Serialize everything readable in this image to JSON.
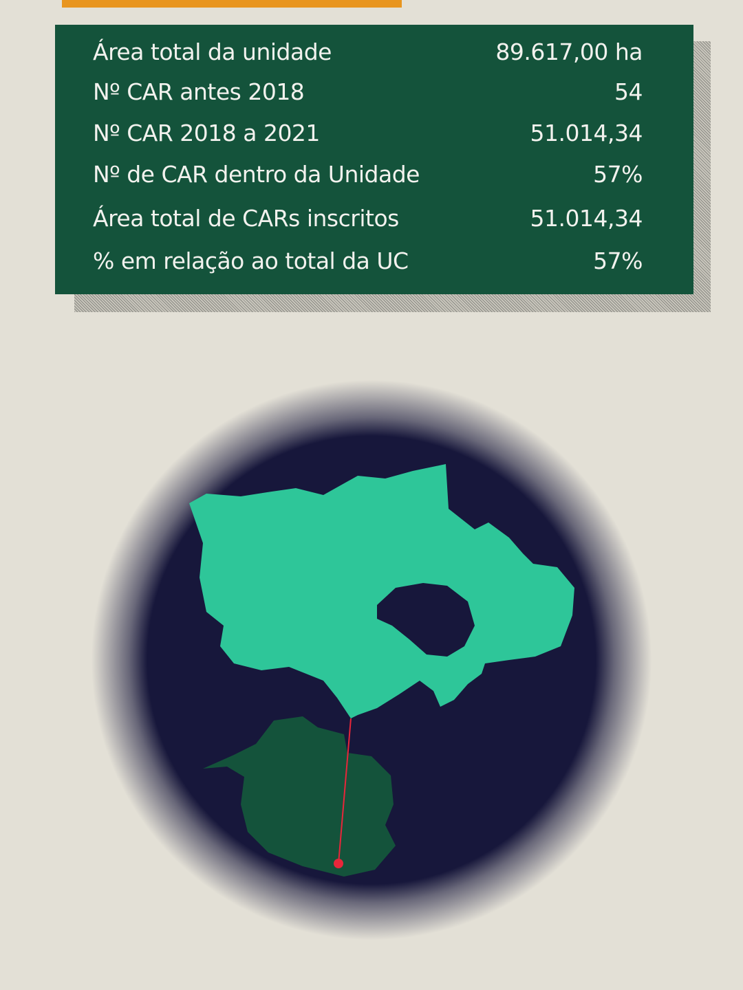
{
  "colors": {
    "background": "#e3e0d6",
    "accent_bar": "#e8951f",
    "panel": "#14533b",
    "map_background": "#17173b",
    "unit_area": "#2ec699",
    "state_area": "#14533b",
    "pointer_line": "#e8263a"
  },
  "stats": {
    "rows": [
      {
        "label": "Área total da unidade",
        "value": "89.617,00 ha"
      },
      {
        "label": "Nº CAR antes 2018",
        "value": "54"
      },
      {
        "label": "Nº CAR 2018 a 2021",
        "value": "51.014,34"
      },
      {
        "label": "Nº de CAR dentro da Unidade",
        "value": "57%"
      },
      {
        "label": "Área total de CARs inscritos",
        "value": "51.014,34"
      },
      {
        "label": "% em relação ao total da UC",
        "value": "57%"
      }
    ]
  }
}
